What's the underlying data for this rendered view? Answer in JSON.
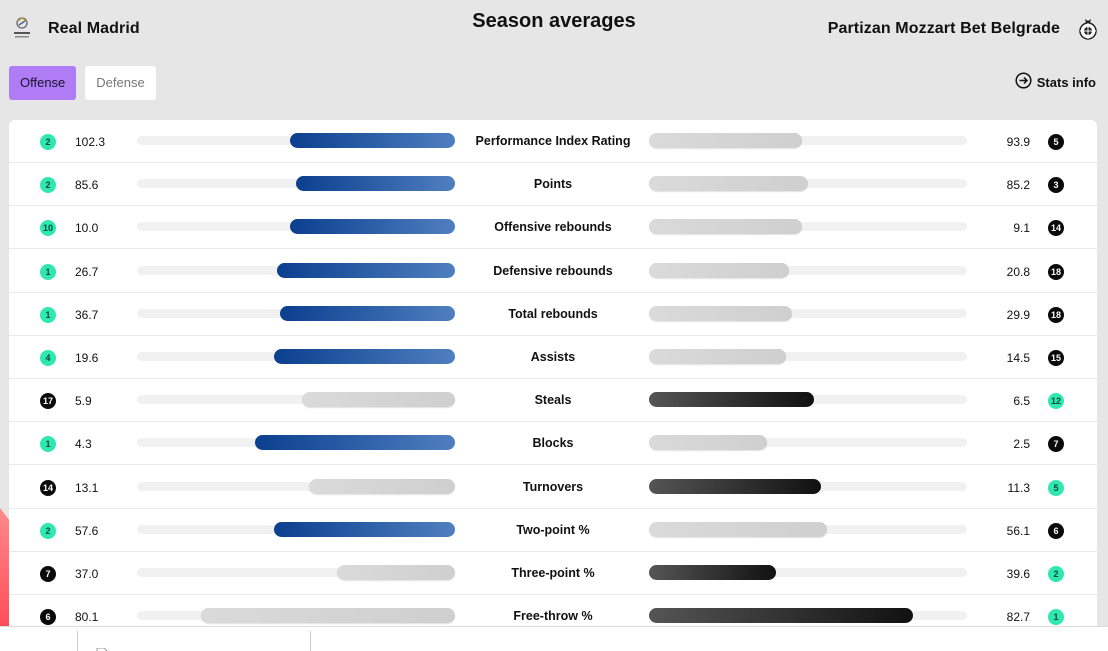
{
  "header": {
    "title": "Season averages",
    "team_left": "Real Madrid",
    "team_right": "Partizan Mozzart Bet Belgrade"
  },
  "tabs": [
    {
      "label": "Offense",
      "active": true
    },
    {
      "label": "Defense",
      "active": false
    }
  ],
  "stats_info_label": "Stats info",
  "colors": {
    "accent_tab": "#b07cf5",
    "rank_best": "#2ee8b0",
    "rank_other": "#0a0a0a",
    "bar_left_leader": "#0b3f8f",
    "bar_right_leader": "#111111",
    "bar_trailing": "#d5d5d5"
  },
  "stats": [
    {
      "label": "Performance Index Rating",
      "left": {
        "value": "102.3",
        "rank": "2"
      },
      "right": {
        "value": "93.9",
        "rank": "5"
      },
      "leader": "left"
    },
    {
      "label": "Points",
      "left": {
        "value": "85.6",
        "rank": "2"
      },
      "right": {
        "value": "85.2",
        "rank": "3"
      },
      "leader": "left"
    },
    {
      "label": "Offensive rebounds",
      "left": {
        "value": "10.0",
        "rank": "10"
      },
      "right": {
        "value": "9.1",
        "rank": "14"
      },
      "leader": "left"
    },
    {
      "label": "Defensive rebounds",
      "left": {
        "value": "26.7",
        "rank": "1"
      },
      "right": {
        "value": "20.8",
        "rank": "18"
      },
      "leader": "left"
    },
    {
      "label": "Total rebounds",
      "left": {
        "value": "36.7",
        "rank": "1"
      },
      "right": {
        "value": "29.9",
        "rank": "18"
      },
      "leader": "left"
    },
    {
      "label": "Assists",
      "left": {
        "value": "19.6",
        "rank": "4"
      },
      "right": {
        "value": "14.5",
        "rank": "15"
      },
      "leader": "left"
    },
    {
      "label": "Steals",
      "left": {
        "value": "5.9",
        "rank": "17"
      },
      "right": {
        "value": "6.5",
        "rank": "12"
      },
      "leader": "right"
    },
    {
      "label": "Blocks",
      "left": {
        "value": "4.3",
        "rank": "1"
      },
      "right": {
        "value": "2.5",
        "rank": "7"
      },
      "leader": "left"
    },
    {
      "label": "Turnovers",
      "left": {
        "value": "13.1",
        "rank": "14"
      },
      "right": {
        "value": "11.3",
        "rank": "5"
      },
      "leader": "right"
    },
    {
      "label": "Two-point %",
      "left": {
        "value": "57.6",
        "rank": "2"
      },
      "right": {
        "value": "56.1",
        "rank": "6"
      },
      "leader": "left"
    },
    {
      "label": "Three-point %",
      "left": {
        "value": "37.0",
        "rank": "7"
      },
      "right": {
        "value": "39.6",
        "rank": "2"
      },
      "leader": "right"
    },
    {
      "label": "Free-throw %",
      "left": {
        "value": "80.1",
        "rank": "6"
      },
      "right": {
        "value": "82.7",
        "rank": "1"
      },
      "leader": "right"
    }
  ],
  "bar_fill": [
    {
      "left": 0.52,
      "right": 0.48
    },
    {
      "left": 0.5,
      "right": 0.5
    },
    {
      "left": 0.52,
      "right": 0.48
    },
    {
      "left": 0.56,
      "right": 0.44
    },
    {
      "left": 0.55,
      "right": 0.45
    },
    {
      "left": 0.57,
      "right": 0.43
    },
    {
      "left": 0.48,
      "right": 0.52
    },
    {
      "left": 0.63,
      "right": 0.37
    },
    {
      "left": 0.46,
      "right": 0.54
    },
    {
      "left": 0.57,
      "right": 0.56
    },
    {
      "left": 0.37,
      "right": 0.4
    },
    {
      "left": 0.8,
      "right": 0.83
    }
  ]
}
